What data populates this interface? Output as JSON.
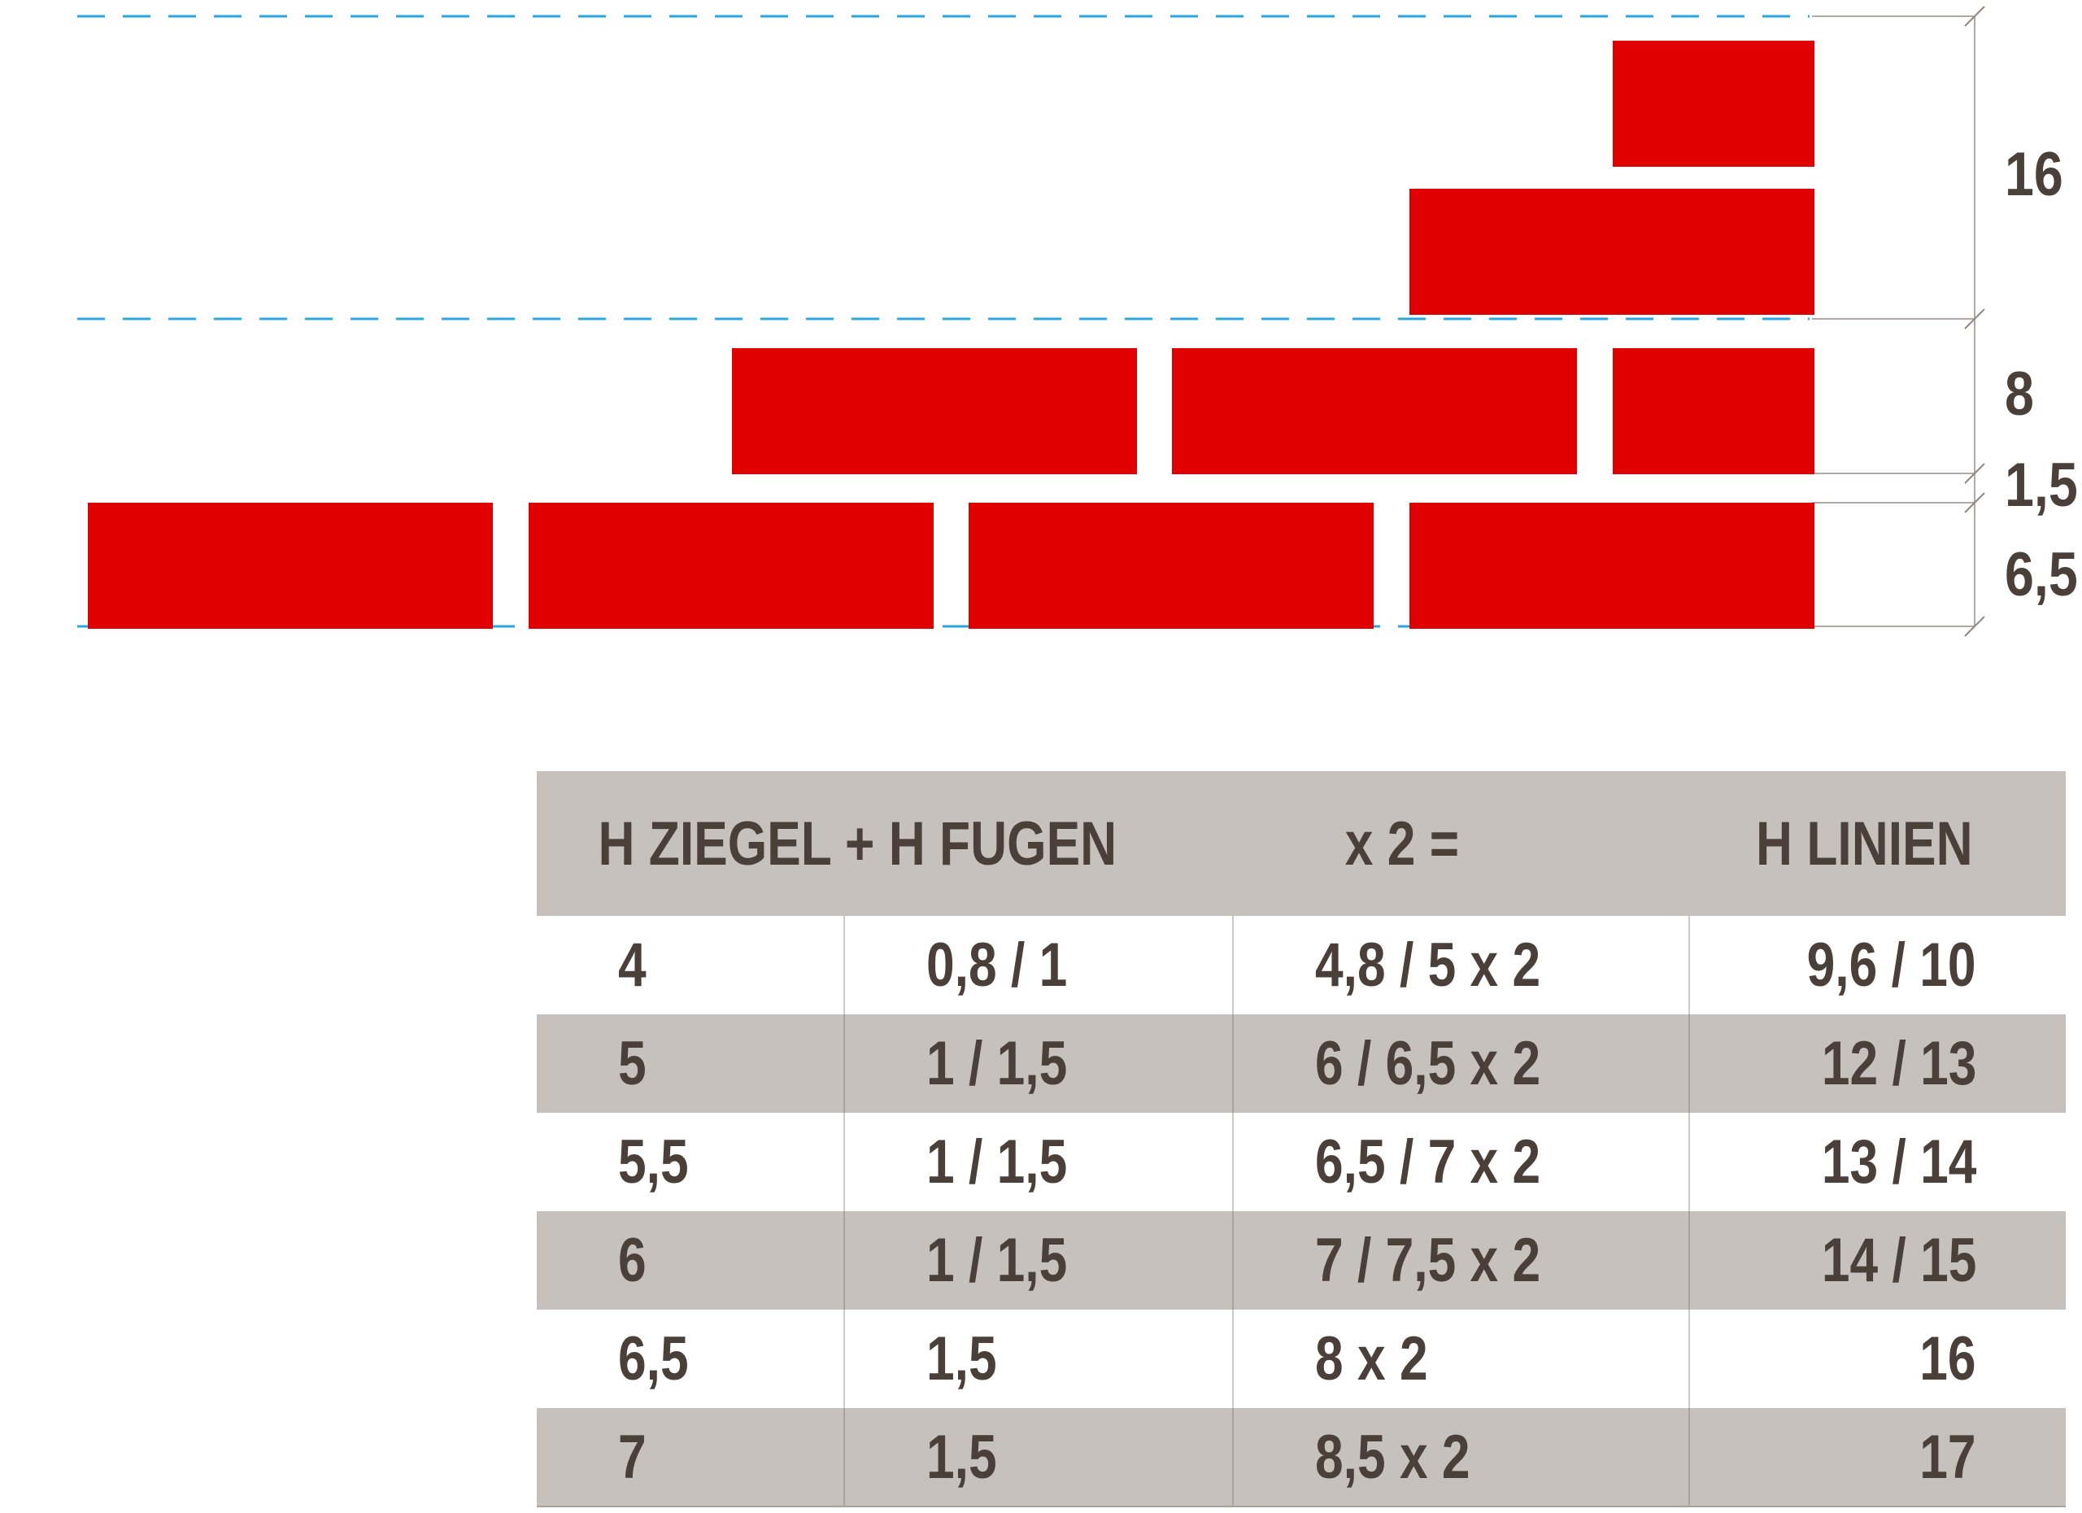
{
  "diagram": {
    "dimension_labels": [
      "16",
      "8",
      "1,5",
      "6,5"
    ],
    "colors": {
      "brick": "#e10000",
      "guide_line": "#29a6df",
      "dimension_line": "#b0aaa4",
      "text": "#4a4039"
    }
  },
  "table": {
    "headers": [
      "H ZIEGEL + H FUGEN",
      "x 2  =",
      "H LINIEN"
    ],
    "rows": [
      [
        "4",
        "0,8 / 1",
        "4,8 / 5 x 2",
        "9,6 / 10"
      ],
      [
        "5",
        "1 / 1,5",
        "6 / 6,5 x 2",
        "12 / 13"
      ],
      [
        "5,5",
        "1 / 1,5",
        "6,5 / 7 x 2",
        "13 / 14"
      ],
      [
        "6",
        "1 / 1,5",
        "7 / 7,5 x 2",
        "14 / 15"
      ],
      [
        "6,5",
        "1,5",
        "8 x 2",
        "16"
      ],
      [
        "7",
        "1,5",
        "8,5 x 2",
        "17"
      ]
    ],
    "colors": {
      "header_bg": "#c6c1bc",
      "stripe_bg": "#c6c1bc",
      "row_bg": "#ffffff"
    }
  }
}
